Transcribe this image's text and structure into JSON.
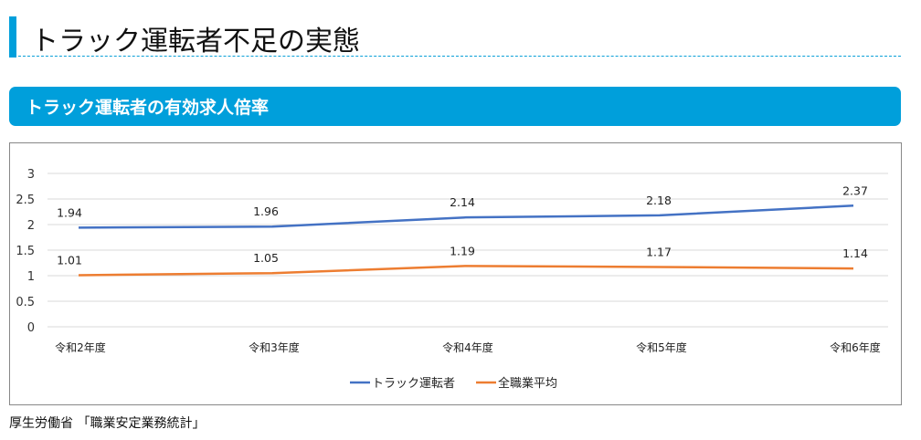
{
  "page": {
    "heading": "トラック運転者不足の実態",
    "section_title": "トラック運転者の有効求人倍率",
    "source": "厚生労働省 「職業安定業務統計」"
  },
  "chart_data": {
    "type": "line",
    "categories": [
      "令和2年度",
      "令和3年度",
      "令和4年度",
      "令和5年度",
      "令和6年度"
    ],
    "series": [
      {
        "name": "トラック運転者",
        "values": [
          1.94,
          1.96,
          2.14,
          2.18,
          2.37
        ],
        "color": "#4472c4",
        "labels": [
          "1.94",
          "1.96",
          "2.14",
          "2.18",
          "2.37"
        ]
      },
      {
        "name": "全職業平均",
        "values": [
          1.01,
          1.05,
          1.19,
          1.17,
          1.14
        ],
        "color": "#ed7d31",
        "labels": [
          "1.01",
          "1.05",
          "1.19",
          "1.17",
          "1.14"
        ]
      }
    ],
    "yticks": [
      "0",
      "0.5",
      "1",
      "1.5",
      "2",
      "2.5",
      "3"
    ],
    "ylim": [
      0,
      3
    ],
    "grid": true,
    "legend": "bottom"
  }
}
